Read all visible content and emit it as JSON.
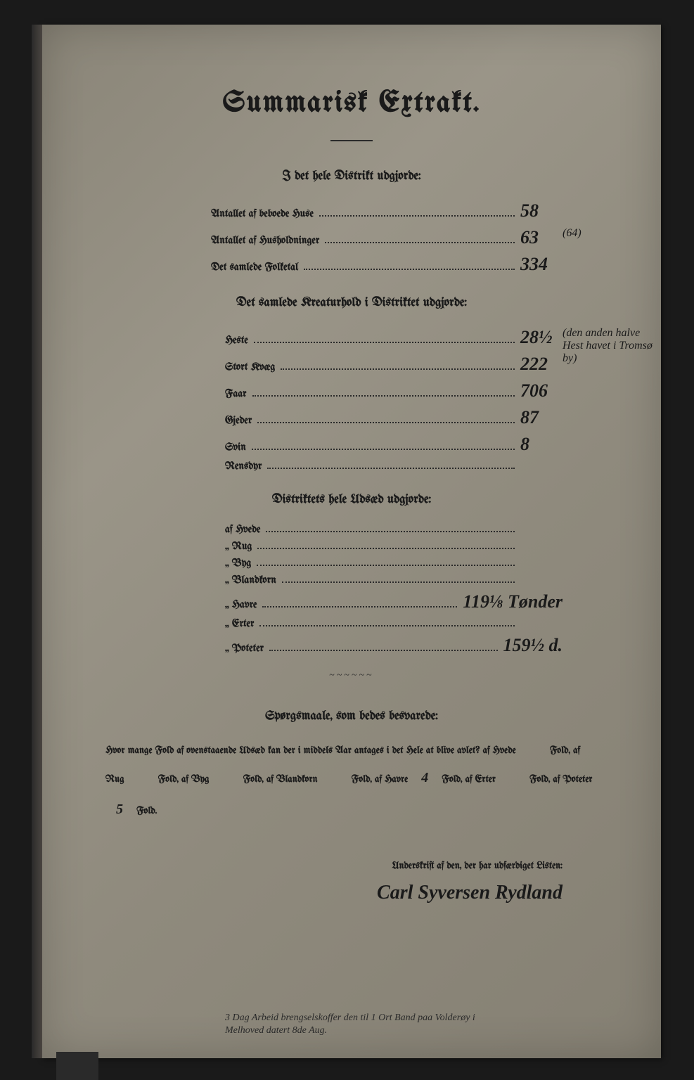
{
  "title": "Summarisk Extrakt.",
  "section1": {
    "header": "I det hele Distrikt udgjorde:",
    "rows": [
      {
        "label": "Antallet af beboede Huse",
        "value": "58",
        "note": ""
      },
      {
        "label": "Antallet af Husholdninger",
        "value": "63",
        "note": "(64)"
      },
      {
        "label": "Det samlede Folketal",
        "value": "334",
        "note": ""
      }
    ]
  },
  "section2": {
    "header": "Det samlede Kreaturhold i Distriktet udgjorde:",
    "rows": [
      {
        "label": "Heste",
        "value": "28½",
        "note": "(den anden halve Hest havet i Tromsø by)"
      },
      {
        "label": "Stort Kvæg",
        "value": "222",
        "note": ""
      },
      {
        "label": "Faar",
        "value": "706",
        "note": ""
      },
      {
        "label": "Gjeder",
        "value": "87",
        "note": ""
      },
      {
        "label": "Svin",
        "value": "8",
        "note": ""
      },
      {
        "label": "Rensdyr",
        "value": "",
        "note": ""
      }
    ]
  },
  "section3": {
    "header": "Distriktets hele Udsæd udgjorde:",
    "rows": [
      {
        "label": "af Hvede",
        "value": "",
        "note": ""
      },
      {
        "label": "„ Rug",
        "value": "",
        "note": ""
      },
      {
        "label": "„ Byg",
        "value": "",
        "note": ""
      },
      {
        "label": "„ Blandkorn",
        "value": "",
        "note": ""
      },
      {
        "label": "„ Havre",
        "value": "119⅛ Tønder",
        "note": ""
      },
      {
        "label": "„ Erter",
        "value": "",
        "note": ""
      },
      {
        "label": "„ Poteter",
        "value": "159½ d.",
        "note": ""
      }
    ]
  },
  "questions": {
    "header": "Spørgsmaale, som bedes besvarede:",
    "text_parts": {
      "intro": "Hvor mange Fold af ovenstaaende Udsæd kan der i middels Aar antages i det Hele at blive avlet? af Hvede",
      "hvede_val": "",
      "rug_val": "",
      "byg_val": "",
      "blandkorn_val": "",
      "havre_val": "4",
      "erter_val": "",
      "poteter_val": "5"
    }
  },
  "signature": {
    "label": "Underskrift af den, der har udfærdiget Listen:",
    "name": "Carl Syversen Rydland"
  },
  "bottom_note": "3 Dag Arbeid\nbrengselskoffer den til 1 Ort Band paa Volderøy i Melhoved\ndatert 8de Aug.",
  "colors": {
    "page_bg": "#8a8578",
    "text": "#1a1a1a",
    "frame": "#1a1a1a"
  }
}
